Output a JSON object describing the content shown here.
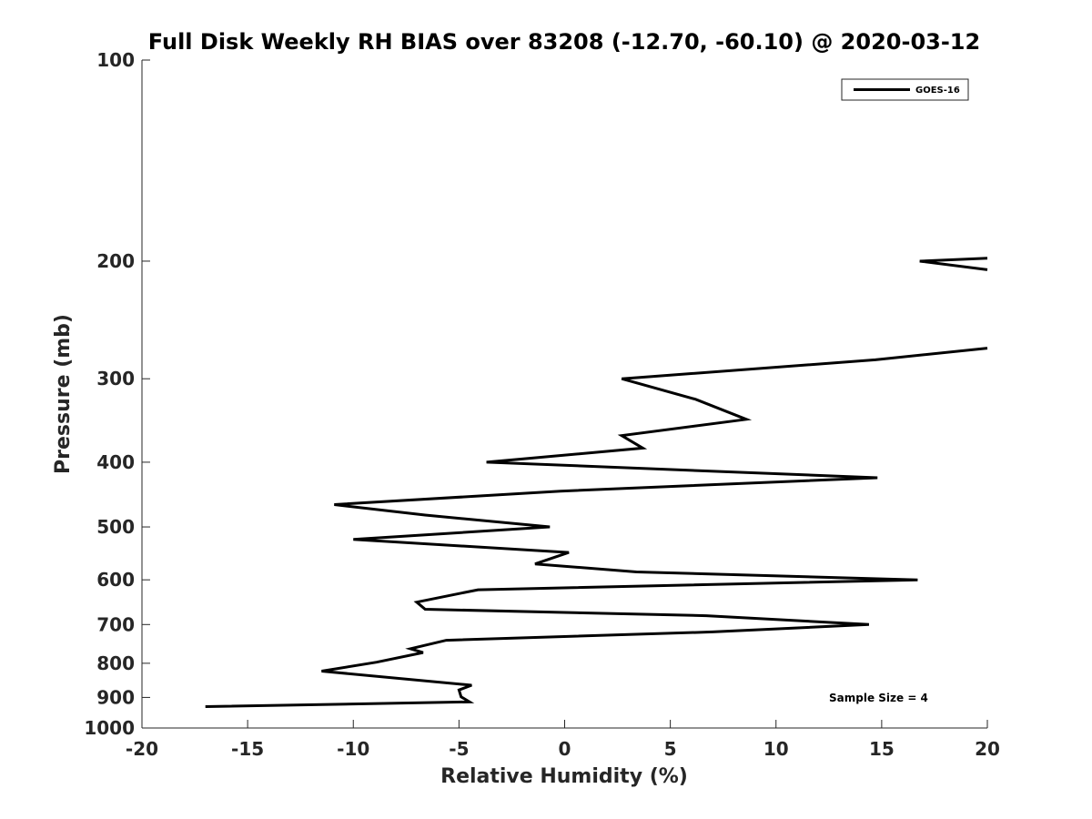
{
  "chart_data": {
    "type": "line",
    "title": "Full Disk Weekly RH BIAS over 83208 (-12.70, -60.10) @ 2020-03-12",
    "xlabel": "Relative Humidity (%)",
    "ylabel": "Pressure (mb)",
    "xlim": [
      -20,
      20
    ],
    "ylim": [
      100,
      1000
    ],
    "y_scale": "log",
    "y_reversed": true,
    "x_ticks": [
      -20,
      -15,
      -10,
      -5,
      0,
      5,
      10,
      15,
      20
    ],
    "y_ticks": [
      100,
      200,
      300,
      400,
      500,
      600,
      700,
      800,
      900,
      1000
    ],
    "grid": false,
    "legend_position": "top-right",
    "annotation": "Sample Size = 4",
    "series": [
      {
        "name": "GOES-16",
        "color": "#000000",
        "segments": [
          [
            {
              "x": 20.0,
              "y": 198
            },
            {
              "x": 16.8,
              "y": 200
            },
            {
              "x": 20.0,
              "y": 206
            }
          ],
          [
            {
              "x": 20.0,
              "y": 270
            },
            {
              "x": 14.7,
              "y": 281
            },
            {
              "x": 2.7,
              "y": 300
            },
            {
              "x": 6.2,
              "y": 322
            },
            {
              "x": 8.6,
              "y": 345
            },
            {
              "x": 2.7,
              "y": 365
            },
            {
              "x": 3.7,
              "y": 381
            },
            {
              "x": -3.7,
              "y": 400
            },
            {
              "x": 14.8,
              "y": 422
            },
            {
              "x": -0.2,
              "y": 442
            },
            {
              "x": -10.9,
              "y": 463
            },
            {
              "x": -6.6,
              "y": 480
            },
            {
              "x": -0.7,
              "y": 500
            },
            {
              "x": -10.0,
              "y": 522
            },
            {
              "x": 0.2,
              "y": 546
            },
            {
              "x": -1.4,
              "y": 568
            },
            {
              "x": 3.4,
              "y": 584
            },
            {
              "x": 16.7,
              "y": 600
            },
            {
              "x": -4.1,
              "y": 621
            },
            {
              "x": -7.0,
              "y": 648
            },
            {
              "x": -6.6,
              "y": 664
            },
            {
              "x": 6.7,
              "y": 679
            },
            {
              "x": 14.4,
              "y": 700
            },
            {
              "x": 7.0,
              "y": 718
            },
            {
              "x": -5.6,
              "y": 739
            },
            {
              "x": -7.3,
              "y": 761
            },
            {
              "x": -6.7,
              "y": 771
            },
            {
              "x": -8.9,
              "y": 797
            },
            {
              "x": -11.5,
              "y": 822
            },
            {
              "x": -4.4,
              "y": 863
            },
            {
              "x": -5.0,
              "y": 877
            },
            {
              "x": -4.9,
              "y": 898
            },
            {
              "x": -4.5,
              "y": 914
            },
            {
              "x": -17.0,
              "y": 929
            }
          ]
        ]
      }
    ]
  }
}
